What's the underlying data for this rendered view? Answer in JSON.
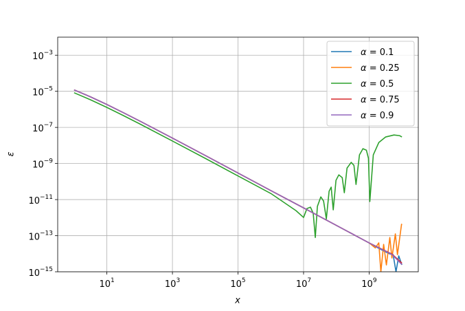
{
  "chart_data": {
    "type": "line",
    "x_label": "x",
    "y_label": "ε",
    "log_x": true,
    "log_y": true,
    "grid": true,
    "legend": "upper right",
    "xlim": [
      0.316,
      31600000000
    ],
    "ylim": [
      1e-15,
      0.01
    ],
    "xticks": [
      {
        "value": 10,
        "label": "101"
      },
      {
        "value": 1000,
        "label": "103"
      },
      {
        "value": 100000,
        "label": "105"
      },
      {
        "value": 10000000,
        "label": "107"
      },
      {
        "value": 1000000000,
        "label": "109"
      }
    ],
    "yticks": [
      {
        "value": 1e-15,
        "label": "10−15"
      },
      {
        "value": 1e-13,
        "label": "10−13"
      },
      {
        "value": 1e-11,
        "label": "10−11"
      },
      {
        "value": 1e-09,
        "label": "10−9"
      },
      {
        "value": 1e-07,
        "label": "10−7"
      },
      {
        "value": 1e-05,
        "label": "10−5"
      },
      {
        "value": 0.001,
        "label": "10−3"
      }
    ],
    "series": [
      {
        "name": "α = 0.1",
        "color": "#1f77b4",
        "x": [
          1,
          3.16,
          10,
          31.6,
          100,
          1000,
          10000,
          100000,
          1000000,
          10000000,
          100000000,
          1000000000,
          1970000000,
          4100000000,
          5400000000,
          6600000000,
          8000000000,
          10000000000
        ],
        "values": [
          1.2e-05,
          4.93e-06,
          1.85e-06,
          6.59e-07,
          2.27e-07,
          2.55e-08,
          2.79e-09,
          2.96e-10,
          3.17e-11,
          3.47e-12,
          3.72e-13,
          3.98e-14,
          2e-14,
          1e-14,
          8.9e-15,
          1e-15,
          7.6e-15,
          2.4e-15
        ]
      },
      {
        "name": "α = 0.25",
        "color": "#ff7f0e",
        "x": [
          1,
          3.16,
          10,
          31.6,
          100,
          1000,
          10000,
          100000,
          1000000,
          10000000,
          100000000,
          1000000000,
          1550000000,
          1970000000,
          2280000000,
          2770000000,
          3360000000,
          4280000000,
          4950000000,
          6310000000,
          7300000000,
          9750000000,
          10000000000
        ],
        "values": [
          1.2e-05,
          4.93e-06,
          1.85e-06,
          6.59e-07,
          2.27e-07,
          2.55e-08,
          2.79e-09,
          2.96e-10,
          3.17e-11,
          3.47e-12,
          3.72e-13,
          3.98e-14,
          2.1e-14,
          4e-14,
          1e-15,
          3.3e-14,
          2.4e-15,
          7.9e-14,
          5.8e-15,
          1.26e-13,
          8.9e-15,
          4.3e-13,
          4e-13
        ]
      },
      {
        "name": "α = 0.5",
        "color": "#2ca02c",
        "x": [
          1,
          3.16,
          10,
          31.6,
          100,
          1000,
          10000,
          100000,
          1000000,
          5870000,
          10000000,
          12700000,
          16200000,
          19700000,
          22800000,
          26400000,
          33600000,
          40800000,
          49500000,
          60100000,
          69500000,
          80400000,
          97500000,
          119000000,
          151000000,
          175000000,
          212000000,
          284000000,
          344000000,
          398000000,
          507000000,
          647000000,
          824000000,
          953000000,
          1050000000,
          1340000000,
          1970000000,
          3200000000,
          5730000000,
          8430000000,
          10000000000
        ],
        "values": [
          8.3e-06,
          3.4e-06,
          1.28e-06,
          4.55e-07,
          1.57e-07,
          1.76e-08,
          1.93e-09,
          2.04e-10,
          2.19e-11,
          2.45e-12,
          1.02e-12,
          3.2e-12,
          3.8e-12,
          1.74e-12,
          7.9e-14,
          4.2e-12,
          1.41e-11,
          8.3e-12,
          8.5e-13,
          2.9e-11,
          4.9e-11,
          2.7e-12,
          1.17e-10,
          2.34e-10,
          1.66e-10,
          2.4e-11,
          5.6e-10,
          1.15e-09,
          7.9e-10,
          6.9e-11,
          3e-09,
          6.6e-09,
          5.5e-09,
          1.95e-09,
          7.8e-12,
          3e-09,
          1.45e-08,
          2.95e-08,
          3.8e-08,
          3.5e-08,
          2.95e-08
        ]
      },
      {
        "name": "α = 0.75",
        "color": "#d62728",
        "x": [
          1,
          3.16,
          10,
          31.6,
          100,
          1000,
          10000,
          100000,
          1000000,
          10000000,
          100000000,
          1000000000,
          5000000000,
          10000000000
        ],
        "values": [
          1.2e-05,
          4.93e-06,
          1.85e-06,
          6.59e-07,
          2.27e-07,
          2.55e-08,
          2.79e-09,
          2.96e-10,
          3.17e-11,
          3.47e-12,
          3.72e-13,
          3.98e-14,
          9.5e-15,
          3e-15
        ]
      },
      {
        "name": "α = 0.9",
        "color": "#9467bd",
        "x": [
          1,
          3.16,
          10,
          31.6,
          100,
          1000,
          10000,
          100000,
          1000000,
          10000000,
          100000000,
          1000000000,
          5000000000,
          10000000000
        ],
        "values": [
          1.2e-05,
          4.93e-06,
          1.85e-06,
          6.59e-07,
          2.27e-07,
          2.55e-08,
          2.79e-09,
          2.96e-10,
          3.17e-11,
          3.47e-12,
          3.72e-13,
          3.98e-14,
          9e-15,
          2.5e-15
        ]
      }
    ]
  }
}
